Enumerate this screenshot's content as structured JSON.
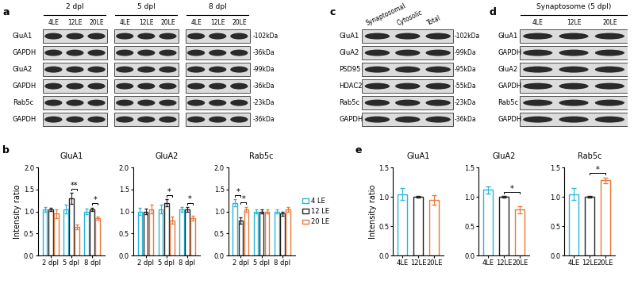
{
  "panel_labels": [
    "a",
    "b",
    "c",
    "d",
    "e"
  ],
  "blots": [
    {
      "panel": "a",
      "groups": [
        {
          "title": "2 dpl",
          "lanes": [
            "4LE",
            "12LE",
            "20LE"
          ]
        },
        {
          "title": "5 dpl",
          "lanes": [
            "4LE",
            "12LE",
            "20LE"
          ]
        },
        {
          "title": "8 dpl",
          "lanes": [
            "4LE",
            "12LE",
            "20LE"
          ]
        }
      ],
      "rows": [
        {
          "name": "GluA1",
          "kda": "-102kDa"
        },
        {
          "name": "GAPDH",
          "kda": "-36kDa"
        },
        {
          "name": "GluA2",
          "kda": "-99kDa"
        },
        {
          "name": "GAPDH",
          "kda": "-36kDa"
        },
        {
          "name": "Rab5c",
          "kda": "-23kDa"
        },
        {
          "name": "GAPDH",
          "kda": "-36kDa"
        }
      ]
    },
    {
      "panel": "c",
      "groups": [
        {
          "lanes": [
            "Synaptosomal",
            "Cytosolic",
            "Total"
          ]
        }
      ],
      "rows": [
        {
          "name": "GluA1",
          "kda": "-102kDa"
        },
        {
          "name": "GluA2",
          "kda": "-99kDa"
        },
        {
          "name": "PSD95",
          "kda": "-95kDa"
        },
        {
          "name": "HDAC2",
          "kda": "-55kDa"
        },
        {
          "name": "Rab5c",
          "kda": "-23kDa"
        },
        {
          "name": "GAPDH",
          "kda": "-36kDa"
        }
      ]
    },
    {
      "panel": "d",
      "groups": [
        {
          "title": "Synaptosome (5 dpl)",
          "lanes": [
            "4LE",
            "12LE",
            "20LE"
          ]
        }
      ],
      "rows": [
        {
          "name": "GluA1"
        },
        {
          "name": "GAPDH"
        },
        {
          "name": "GluA2"
        },
        {
          "name": "GAPDH"
        },
        {
          "name": "Rab5c"
        },
        {
          "name": "GAPDH"
        }
      ]
    }
  ],
  "chart_data": [
    {
      "panel": "b",
      "type": "bar",
      "title": "GluA1",
      "ylabel": "Intensity ratio",
      "categories": [
        "2 dpl",
        "5 dpl",
        "8 dpl"
      ],
      "series": [
        {
          "name": "4 LE",
          "color": "#29b6d8",
          "values": [
            1.05,
            1.05,
            1.0
          ],
          "errors": [
            0.05,
            0.1,
            0.06
          ]
        },
        {
          "name": "12 LE",
          "color": "#222222",
          "values": [
            1.05,
            1.3,
            1.05
          ],
          "errors": [
            0.04,
            0.12,
            0.04
          ]
        },
        {
          "name": "20 LE",
          "color": "#e8773a",
          "values": [
            0.95,
            0.65,
            0.85
          ],
          "errors": [
            0.1,
            0.06,
            0.04
          ]
        }
      ],
      "ylim": [
        0,
        2.0
      ],
      "yticks": [
        {
          "value": 0,
          "label": "0.0"
        },
        {
          "value": 0.5,
          "label": "0.5"
        },
        {
          "value": 1.0,
          "label": "1.0"
        },
        {
          "value": 1.5,
          "label": "1.5"
        },
        {
          "value": 2.0,
          "label": "2.0"
        }
      ],
      "annotations": [
        {
          "text": "**",
          "category": "5 dpl",
          "series": [
            "12 LE",
            "20 LE"
          ]
        },
        {
          "text": "*",
          "category": "8 dpl",
          "series": [
            "12 LE",
            "20 LE"
          ]
        }
      ]
    },
    {
      "panel": "b",
      "type": "bar",
      "title": "GluA2",
      "categories": [
        "2 dpl",
        "5 dpl",
        "8 dpl"
      ],
      "series": [
        {
          "name": "4 LE",
          "color": "#29b6d8",
          "values": [
            1.0,
            1.05,
            1.05
          ],
          "errors": [
            0.08,
            0.1,
            0.06
          ]
        },
        {
          "name": "12 LE",
          "color": "#222222",
          "values": [
            1.0,
            1.2,
            1.05
          ],
          "errors": [
            0.06,
            0.08,
            0.05
          ]
        },
        {
          "name": "20 LE",
          "color": "#e8773a",
          "values": [
            1.05,
            0.8,
            0.85
          ],
          "errors": [
            0.1,
            0.08,
            0.05
          ]
        }
      ],
      "ylim": [
        0,
        2.0
      ],
      "yticks": [
        {
          "value": 0,
          "label": "0.0"
        },
        {
          "value": 0.5,
          "label": "0.5"
        },
        {
          "value": 1.0,
          "label": "1.0"
        },
        {
          "value": 1.5,
          "label": "1.5"
        },
        {
          "value": 2.0,
          "label": "2.0"
        }
      ],
      "annotations": [
        {
          "text": "*",
          "category": "5 dpl",
          "series": [
            "12 LE",
            "20 LE"
          ]
        },
        {
          "text": "*",
          "category": "8 dpl",
          "series": [
            "12 LE",
            "20 LE"
          ]
        }
      ]
    },
    {
      "panel": "b",
      "type": "bar",
      "title": "Rab5c",
      "legend": "right",
      "categories": [
        "2 dpl",
        "5 dpl",
        "8 dpl"
      ],
      "series": [
        {
          "name": "4 LE",
          "color": "#29b6d8",
          "values": [
            1.2,
            1.0,
            1.0
          ],
          "errors": [
            0.08,
            0.05,
            0.05
          ]
        },
        {
          "name": "12 LE",
          "color": "#222222",
          "values": [
            0.8,
            1.0,
            0.95
          ],
          "errors": [
            0.07,
            0.05,
            0.05
          ]
        },
        {
          "name": "20 LE",
          "color": "#e8773a",
          "values": [
            1.05,
            1.0,
            1.05
          ],
          "errors": [
            0.06,
            0.05,
            0.05
          ]
        }
      ],
      "ylim": [
        0,
        2.0
      ],
      "yticks": [
        {
          "value": 0,
          "label": "0.0"
        },
        {
          "value": 0.5,
          "label": "0.5"
        },
        {
          "value": 1.0,
          "label": "1.0"
        },
        {
          "value": 1.5,
          "label": "1.5"
        },
        {
          "value": 2.0,
          "label": "2.0"
        }
      ],
      "annotations": [
        {
          "text": "*",
          "category": "2 dpl",
          "series": [
            "4 LE",
            "12 LE"
          ]
        },
        {
          "text": "*",
          "category": "2 dpl",
          "series": [
            "12 LE",
            "20 LE"
          ]
        }
      ]
    },
    {
      "panel": "e",
      "type": "bar",
      "title": "GluA1",
      "ylabel": "Intensity ratio",
      "categories": [
        "4LE",
        "12LE",
        "20LE"
      ],
      "colors": [
        "#29b6d8",
        "#222222",
        "#e8773a"
      ],
      "values": [
        1.05,
        1.0,
        0.95
      ],
      "errors": [
        0.1,
        0.01,
        0.08
      ],
      "ylim": [
        0,
        1.5
      ],
      "yticks": [
        {
          "value": 0,
          "label": "0.0"
        },
        {
          "value": 0.5,
          "label": "0.5"
        },
        {
          "value": 1.0,
          "label": "1.0"
        },
        {
          "value": 1.5,
          "label": "1.5"
        }
      ]
    },
    {
      "panel": "e",
      "type": "bar",
      "title": "GluA2",
      "categories": [
        "4LE",
        "12LE",
        "20LE"
      ],
      "colors": [
        "#29b6d8",
        "#222222",
        "#e8773a"
      ],
      "values": [
        1.12,
        1.0,
        0.78
      ],
      "errors": [
        0.06,
        0.01,
        0.06
      ],
      "ylim": [
        0,
        1.5
      ],
      "yticks": [
        {
          "value": 0,
          "label": "0.0"
        },
        {
          "value": 0.5,
          "label": "0.5"
        },
        {
          "value": 1.0,
          "label": "1.0"
        },
        {
          "value": 1.5,
          "label": "1.5"
        }
      ],
      "annotations": [
        {
          "text": "*",
          "categories": [
            "12LE",
            "20LE"
          ]
        }
      ]
    },
    {
      "panel": "e",
      "type": "bar",
      "title": "Rab5c",
      "categories": [
        "4LE",
        "12LE",
        "20LE"
      ],
      "colors": [
        "#29b6d8",
        "#222222",
        "#e8773a"
      ],
      "values": [
        1.05,
        1.0,
        1.28
      ],
      "errors": [
        0.1,
        0.01,
        0.05
      ],
      "ylim": [
        0,
        1.5
      ],
      "yticks": [
        {
          "value": 0,
          "label": "0.0"
        },
        {
          "value": 0.5,
          "label": "0.5"
        },
        {
          "value": 1.0,
          "label": "1.0"
        },
        {
          "value": 1.5,
          "label": "1.5"
        }
      ],
      "annotations": [
        {
          "text": "*",
          "categories": [
            "12LE",
            "20LE"
          ]
        }
      ]
    }
  ]
}
